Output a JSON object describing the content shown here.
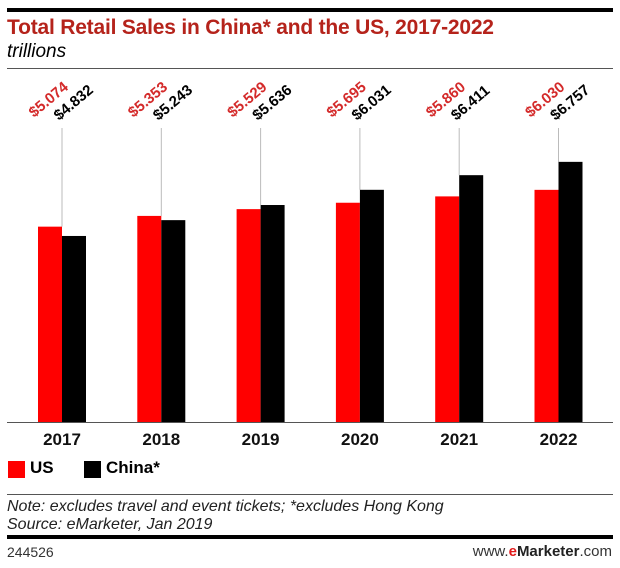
{
  "chart_data": {
    "type": "bar",
    "title": "Total Retail Sales in China* and the US, 2017-2022",
    "subtitle": "trillions",
    "categories": [
      "2017",
      "2018",
      "2019",
      "2020",
      "2021",
      "2022"
    ],
    "series": [
      {
        "name": "US",
        "color": "#ff0000",
        "values": [
          5.074,
          5.353,
          5.529,
          5.695,
          5.86,
          6.03
        ],
        "labels": [
          "$5.074",
          "$5.353",
          "$5.529",
          "$5.695",
          "$5.860",
          "$6.030"
        ],
        "label_color": "#d42a2a"
      },
      {
        "name": "China*",
        "color": "#000000",
        "values": [
          4.832,
          5.243,
          5.636,
          6.031,
          6.411,
          6.757
        ],
        "labels": [
          "$4.832",
          "$5.243",
          "$5.636",
          "$6.031",
          "$6.411",
          "$6.757"
        ],
        "label_color": "#000000"
      }
    ],
    "ylim": [
      0,
      10.5
    ],
    "grid": false,
    "legend": "bottom-left"
  },
  "footer": {
    "note": "Note: excludes travel and event tickets; *excludes Hong Kong",
    "source": "Source: eMarketer, Jan 2019",
    "chart_id": "244526",
    "brand_prefix": "www.",
    "brand_e": "e",
    "brand_name": "Marketer",
    "brand_suffix": ".com"
  }
}
